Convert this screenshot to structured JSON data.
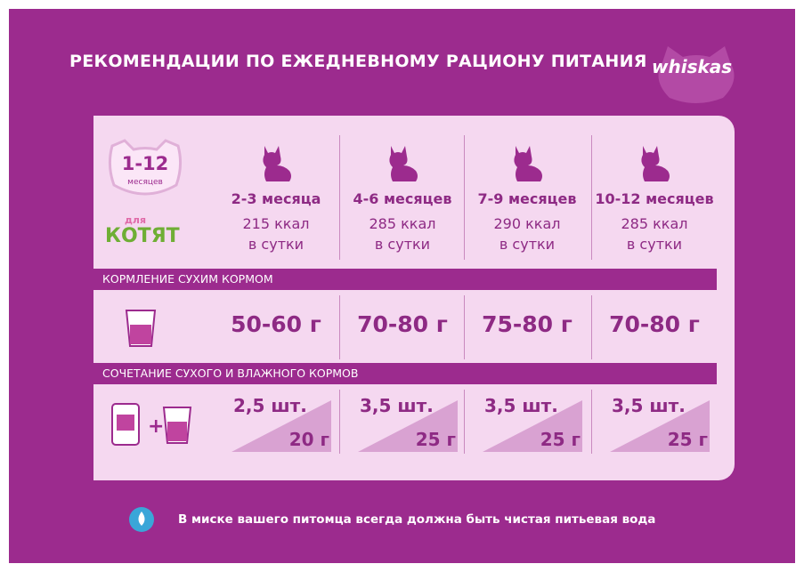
{
  "header": {
    "title": "РЕКОМЕНДАЦИИ ПО ЕЖЕДНЕВНОМУ РАЦИОНУ ПИТАНИЯ",
    "logo": "whiskas"
  },
  "badge": {
    "age": "1-12",
    "unit": "месяцев",
    "for": "для",
    "kittens": "КОТЯТ"
  },
  "columns": [
    {
      "age": "2-3 месяца",
      "kcal": "215 ккал",
      "per": "в сутки"
    },
    {
      "age": "4-6 месяцев",
      "kcal": "285 ккал",
      "per": "в сутки"
    },
    {
      "age": "7-9 месяцев",
      "kcal": "290 ккал",
      "per": "в сутки"
    },
    {
      "age": "10-12 месяцев",
      "kcal": "285 ккал",
      "per": "в сутки"
    }
  ],
  "dry": {
    "title": "КОРМЛЕНИЕ СУХИМ КОРМОМ",
    "values": [
      "50-60 г",
      "70-80 г",
      "75-80 г",
      "70-80 г"
    ]
  },
  "mixed": {
    "title": "СОЧЕТАНИЕ СУХОГО И ВЛАЖНОГО КОРМОВ",
    "items": [
      {
        "pouches": "2,5 шт.",
        "dry": "20 г"
      },
      {
        "pouches": "3,5 шт.",
        "dry": "25 г"
      },
      {
        "pouches": "3,5 шт.",
        "dry": "25 г"
      },
      {
        "pouches": "3,5 шт.",
        "dry": "25 г"
      }
    ]
  },
  "note": "В миске вашего питомца всегда должна быть чистая питьевая вода"
}
